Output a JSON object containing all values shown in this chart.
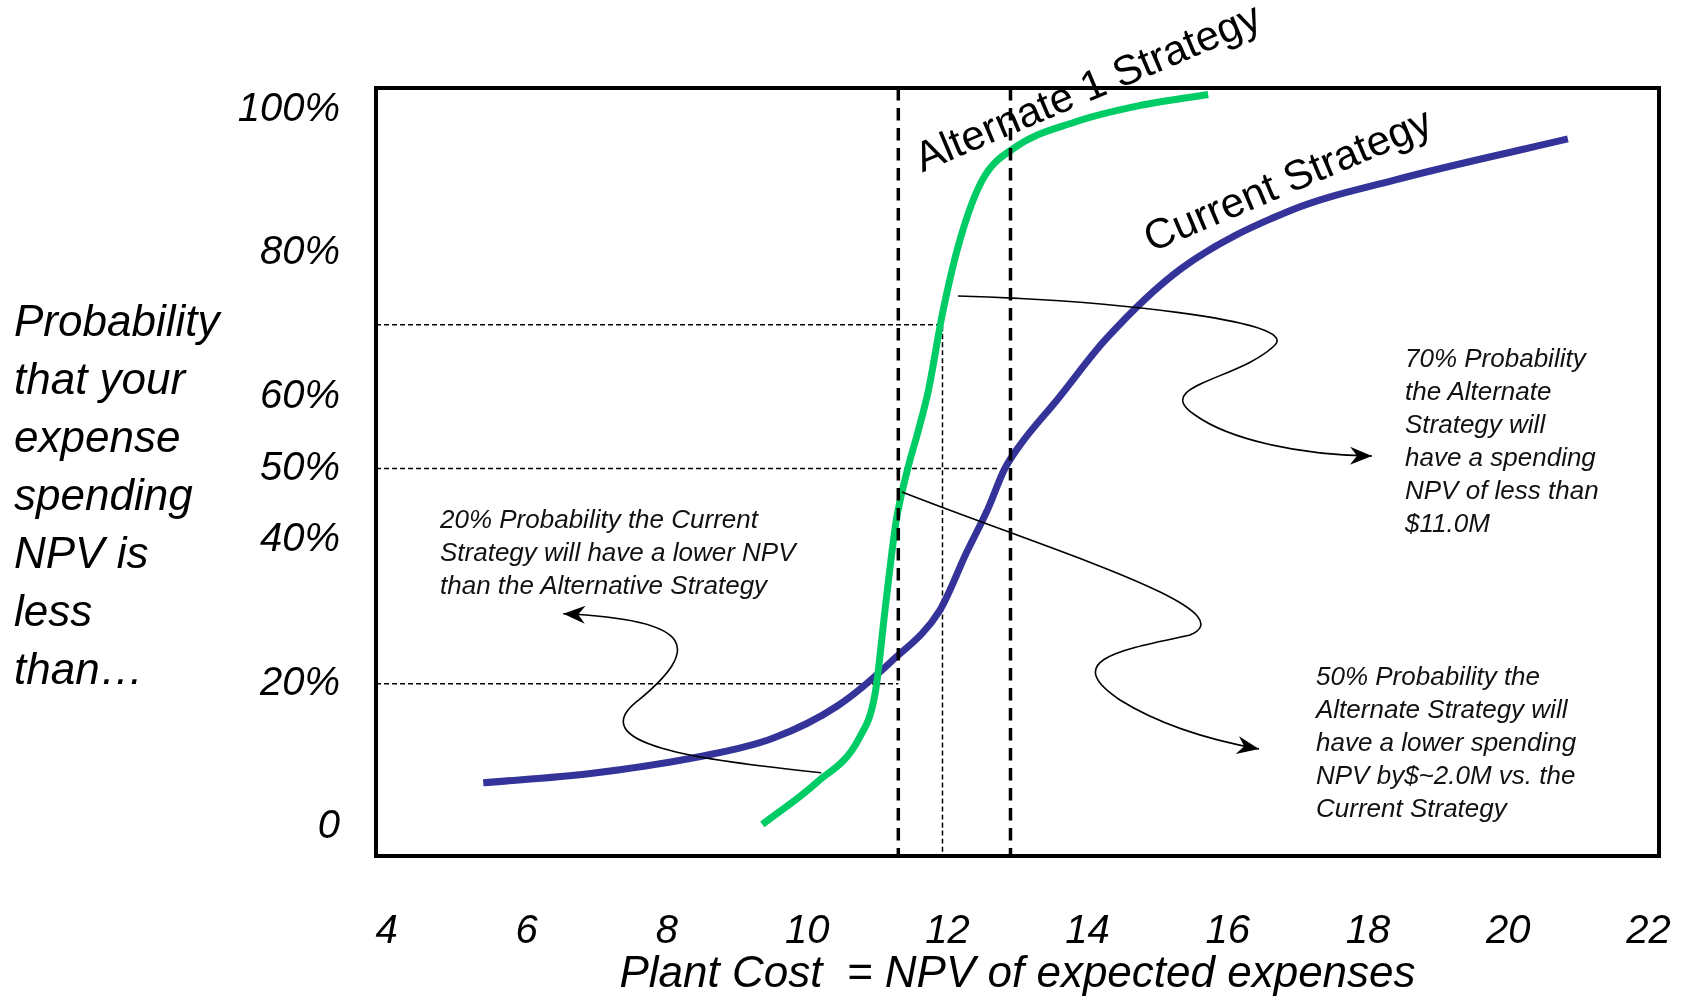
{
  "chart_data": {
    "type": "line",
    "xlabel": "Plant Cost  = NPV of expected expenses",
    "ylabel": "Probability that your expense spending NPV is less than…",
    "xlim": [
      3.85,
      22.15
    ],
    "xticks": [
      4,
      6,
      8,
      10,
      12,
      14,
      16,
      18,
      20,
      22
    ],
    "ylim": [
      -4,
      103
    ],
    "yticks": [
      0,
      {
        "value": 20,
        "label": "20%"
      },
      {
        "value": 40,
        "label": "40%"
      },
      {
        "value": 50,
        "label": "50%"
      },
      {
        "value": 60,
        "label": "60%"
      },
      {
        "value": 80,
        "label": "80%"
      },
      {
        "value": 100,
        "label": "100%"
      }
    ],
    "grid": false,
    "legend": false,
    "marker": "none",
    "series": [
      {
        "name": "Alternate 1 Strategy",
        "color": "#00cc66",
        "x": [
          9.36,
          10.13,
          10.74,
          10.97,
          11.12,
          11.27,
          11.43,
          11.58,
          11.73,
          11.93,
          12.19,
          12.5,
          12.96,
          13.8,
          14.72,
          15.72
        ],
        "values": [
          0.4,
          6.2,
          12.4,
          18.7,
          31.1,
          42.7,
          49.8,
          55.1,
          60.9,
          71.6,
          82.2,
          90.2,
          94.7,
          98.2,
          100.5,
          102.1
        ]
      },
      {
        "name": "Current Strategy",
        "color": "#333399",
        "x": [
          5.38,
          6.91,
          8.44,
          9.51,
          10.43,
          11.2,
          11.89,
          12.27,
          12.58,
          12.81,
          13.04,
          13.57,
          14.26,
          15.33,
          16.86,
          18.39,
          20.85
        ],
        "values": [
          6.2,
          7.5,
          9.8,
          12.4,
          16.9,
          23.1,
          30.2,
          38.2,
          44.4,
          49.8,
          53.3,
          59.6,
          68,
          77.8,
          85.8,
          90.2,
          95.9
        ]
      },
      {
        "color": "#000000",
        "line_style": "dashed",
        "x": [
          3.85,
          11.3
        ],
        "values": [
          20,
          20
        ]
      },
      {
        "color": "#000000",
        "line_style": "dashed",
        "x": [
          3.85,
          12.73
        ],
        "values": [
          50,
          50
        ]
      },
      {
        "color": "#000000",
        "line_style": "dashed",
        "x": [
          3.85,
          11.93,
          11.93
        ],
        "values": [
          70,
          70,
          -4
        ]
      }
    ],
    "ref_lines": [
      {
        "axis": "x",
        "value": 11.3,
        "color": "#000000",
        "line_style": "dashed"
      },
      {
        "axis": "x",
        "value": 12.9,
        "color": "#000000",
        "line_style": "dashed"
      }
    ],
    "annotations": [
      {
        "text": "20% Probability the Current Strategy will have a lower NPV than the Alternative Strategy",
        "x": 10.2,
        "y": 7.6
      },
      "70% Probability the Alternate Strategy will have a spending NPV of less than $11.0M",
      "50% Probability the Alternate Strategy will have a lower spending NPV by$~2.0M vs. the Current Strategy"
    ]
  }
}
